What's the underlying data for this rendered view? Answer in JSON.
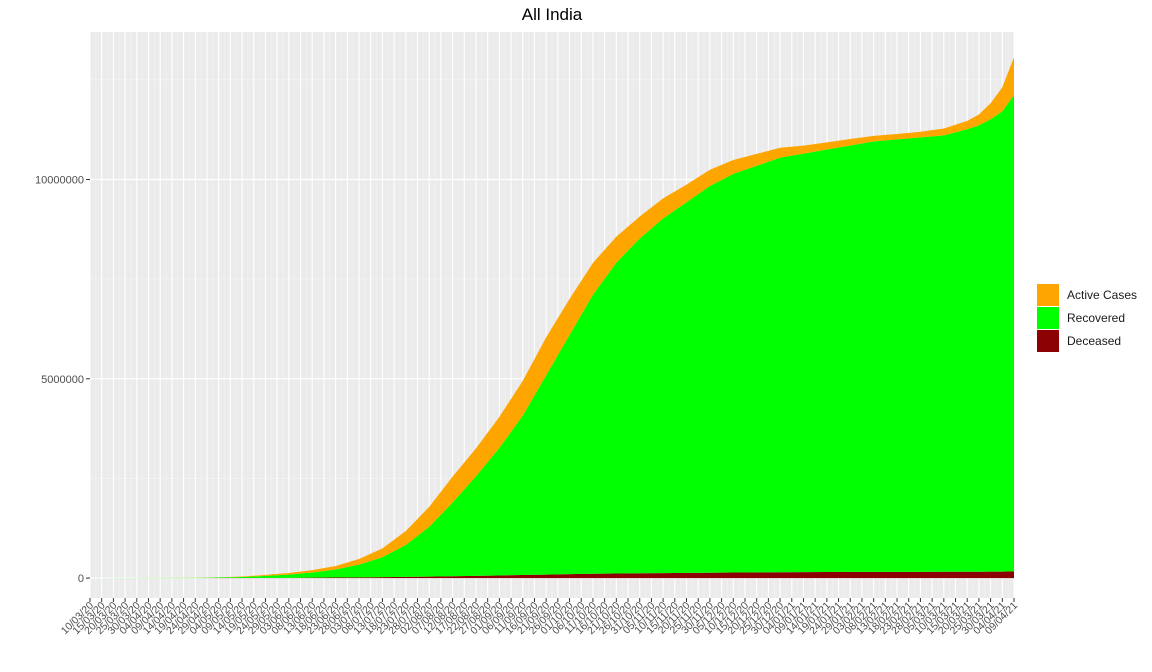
{
  "chart_data": {
    "type": "area",
    "stacked": true,
    "title": "All India",
    "xlabel": "",
    "ylabel": "",
    "ylim": [
      -500000,
      13700000
    ],
    "y_ticks": [
      0,
      5000000,
      10000000
    ],
    "y_tick_labels": [
      "0",
      "5000000",
      "10000000"
    ],
    "x_tick_labels": [
      "10/03/20",
      "15/03/20",
      "20/03/20",
      "25/03/20",
      "30/03/20",
      "04/04/20",
      "09/04/20",
      "14/04/20",
      "19/04/20",
      "24/04/20",
      "29/04/20",
      "04/05/20",
      "09/05/20",
      "14/05/20",
      "19/05/20",
      "24/05/20",
      "29/05/20",
      "03/06/20",
      "08/06/20",
      "13/06/20",
      "18/06/20",
      "23/06/20",
      "28/06/20",
      "03/07/20",
      "08/07/20",
      "13/07/20",
      "18/07/20",
      "23/07/20",
      "28/07/20",
      "02/08/20",
      "07/08/20",
      "12/08/20",
      "17/08/20",
      "22/08/20",
      "27/08/20",
      "01/09/20",
      "06/09/20",
      "11/09/20",
      "16/09/20",
      "21/09/20",
      "26/09/20",
      "01/10/20",
      "06/10/20",
      "11/10/20",
      "16/10/20",
      "21/10/20",
      "26/10/20",
      "31/10/20",
      "05/11/20",
      "10/11/20",
      "15/11/20",
      "20/11/20",
      "25/11/20",
      "30/11/20",
      "05/12/20",
      "10/12/20",
      "15/12/20",
      "20/12/20",
      "25/12/20",
      "30/12/20",
      "04/01/21",
      "09/01/21",
      "14/01/21",
      "19/01/21",
      "24/01/21",
      "29/01/21",
      "03/02/21",
      "08/02/21",
      "13/02/21",
      "18/02/21",
      "23/02/21",
      "28/02/21",
      "05/03/21",
      "10/03/21",
      "15/03/21",
      "20/03/21",
      "25/03/21",
      "30/03/21",
      "04/04/21",
      "09/04/21"
    ],
    "x": [
      "10/03/20",
      "24/04/20",
      "04/05/20",
      "14/05/20",
      "24/05/20",
      "03/06/20",
      "13/06/20",
      "23/06/20",
      "03/07/20",
      "13/07/20",
      "23/07/20",
      "02/08/20",
      "12/08/20",
      "22/08/20",
      "01/09/20",
      "11/09/20",
      "21/09/20",
      "01/10/20",
      "11/10/20",
      "21/10/20",
      "31/10/20",
      "10/11/20",
      "20/11/20",
      "30/11/20",
      "10/12/20",
      "20/12/20",
      "30/12/20",
      "09/01/21",
      "19/01/21",
      "29/01/21",
      "08/02/21",
      "18/02/21",
      "28/02/21",
      "10/03/21",
      "20/03/21",
      "25/03/21",
      "30/03/21",
      "04/04/21",
      "09/04/21"
    ],
    "series": [
      {
        "name": "Deceased",
        "color": "#8b0000",
        "values": [
          0,
          0,
          1000,
          2000,
          4000,
          6000,
          10000,
          14000,
          18000,
          24000,
          30000,
          37000,
          45000,
          55000,
          65000,
          77000,
          88000,
          100000,
          108000,
          115000,
          120000,
          125000,
          130000,
          135000,
          140000,
          143000,
          147000,
          150000,
          152000,
          154000,
          155000,
          156000,
          157000,
          158000,
          159000,
          160000,
          161000,
          163000,
          167000
        ]
      },
      {
        "name": "Recovered",
        "color": "#00ff00",
        "values": [
          0,
          5000,
          12000,
          25000,
          50000,
          80000,
          130000,
          200000,
          320000,
          500000,
          800000,
          1250000,
          1850000,
          2500000,
          3200000,
          4000000,
          5000000,
          6000000,
          7000000,
          7800000,
          8400000,
          8900000,
          9300000,
          9700000,
          10000000,
          10200000,
          10400000,
          10500000,
          10600000,
          10700000,
          10800000,
          10850000,
          10900000,
          10950000,
          11100000,
          11200000,
          11350000,
          11550000,
          11950000
        ]
      },
      {
        "name": "Active Cases",
        "color": "#ffa500",
        "values": [
          0,
          3000,
          6000,
          12000,
          25000,
          40000,
          60000,
          90000,
          140000,
          220000,
          350000,
          500000,
          650000,
          700000,
          780000,
          870000,
          950000,
          900000,
          800000,
          650000,
          550000,
          500000,
          440000,
          410000,
          350000,
          300000,
          250000,
          200000,
          180000,
          160000,
          140000,
          135000,
          140000,
          170000,
          210000,
          270000,
          400000,
          600000,
          950000
        ]
      }
    ],
    "legend": {
      "placement": "right",
      "order": [
        "Active Cases",
        "Recovered",
        "Deceased"
      ]
    },
    "grid": true,
    "panel_background": "#ebebeb"
  }
}
